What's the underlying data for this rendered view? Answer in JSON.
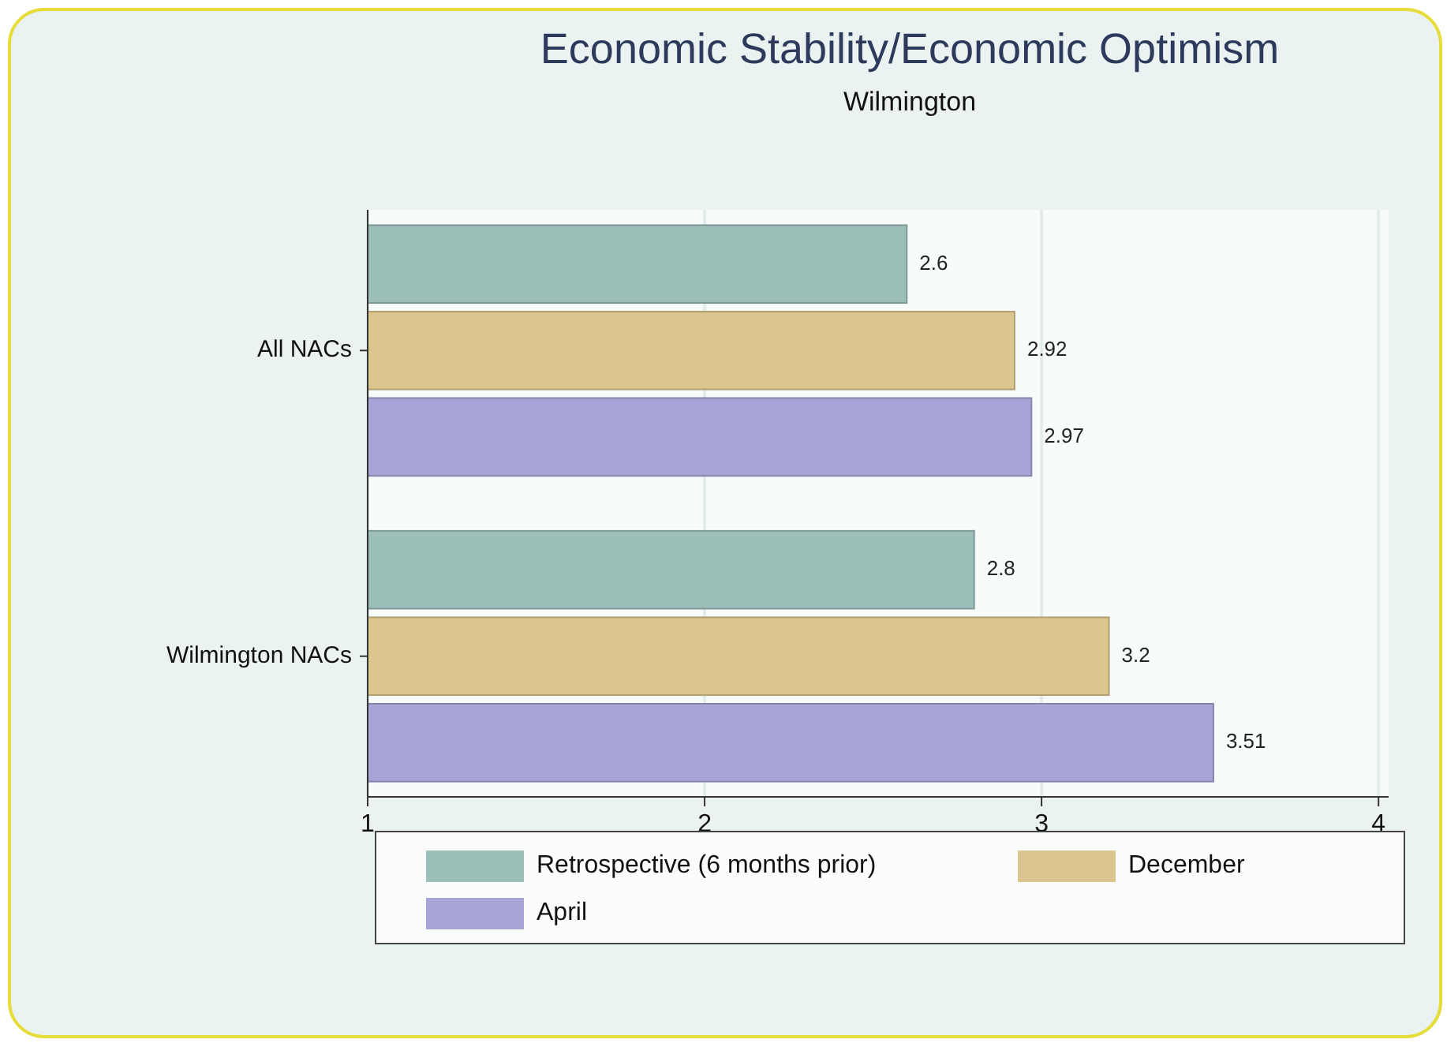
{
  "chart_data": {
    "type": "bar",
    "orientation": "horizontal",
    "title": "Economic Stability/Economic Optimism",
    "subtitle": "Wilmington",
    "categories": [
      "All NACs",
      "Wilmington NACs"
    ],
    "series": [
      {
        "name": "Retrospective (6 months prior)",
        "color": "#9dbfba",
        "values": [
          2.6,
          2.8
        ]
      },
      {
        "name": "December",
        "color": "#dcc68f",
        "values": [
          2.92,
          3.2
        ]
      },
      {
        "name": "April",
        "color": "#a9a4d8",
        "values": [
          2.97,
          3.51
        ]
      }
    ],
    "xlim": [
      1,
      4.03
    ],
    "xticks": [
      1,
      2,
      3,
      4
    ],
    "grid": "x",
    "data_labels": true,
    "legend": "bottom"
  }
}
